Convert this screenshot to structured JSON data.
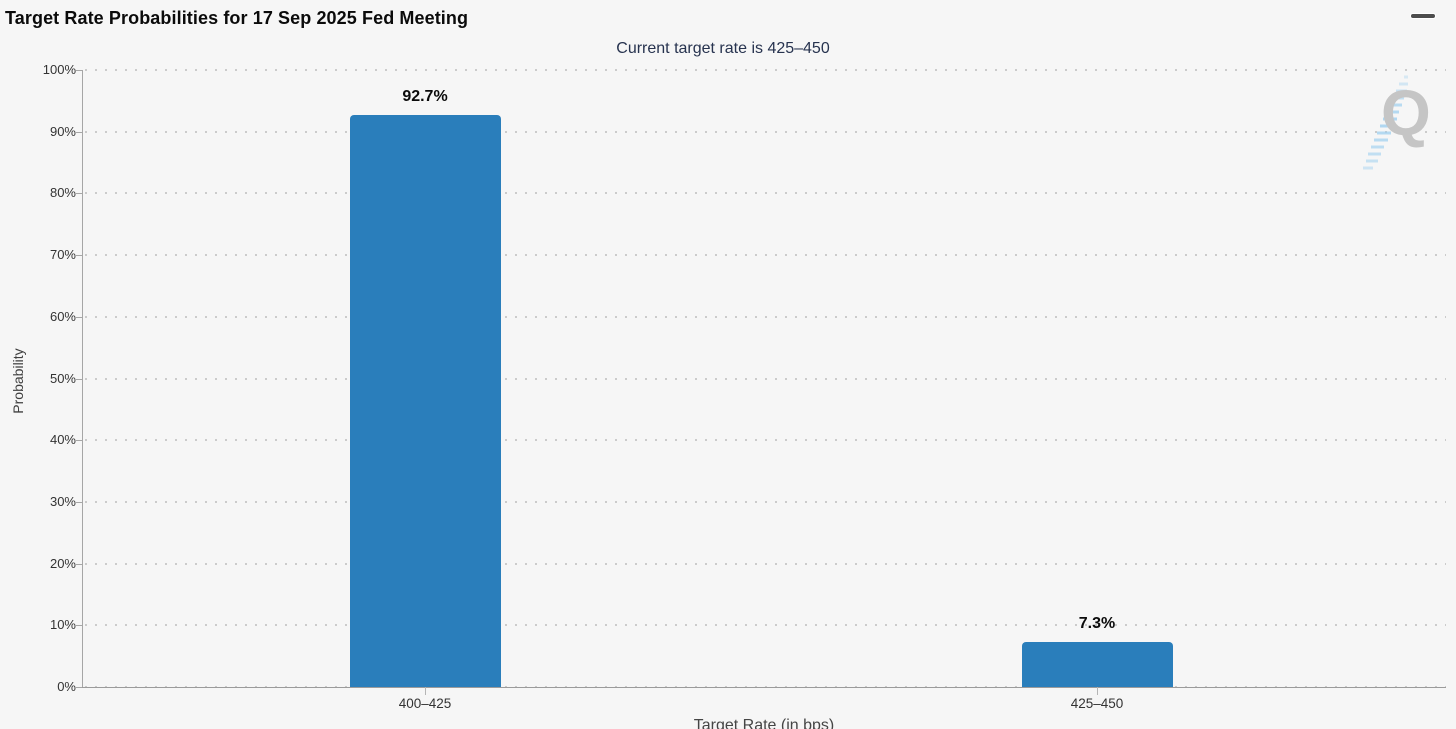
{
  "page": {
    "title": "Target Rate Probabilities for 17 Sep 2025 Fed Meeting"
  },
  "menu": {
    "icon": "hamburger-icon"
  },
  "watermark": {
    "letter": "Q"
  },
  "chart_data": {
    "type": "bar",
    "title": "Target Rate Probabilities for 17 Sep 2025 Fed Meeting",
    "subtitle": "Current target rate is 425–450",
    "categories": [
      "400–425",
      "425–450"
    ],
    "values": [
      92.7,
      7.3
    ],
    "value_labels": [
      "92.7%",
      "7.3%"
    ],
    "xlabel": "Target Rate (in bps)",
    "ylabel": "Probability",
    "ylim": [
      0,
      100
    ],
    "y_tick_labels": [
      "0%",
      "10%",
      "20%",
      "30%",
      "40%",
      "50%",
      "60%",
      "70%",
      "80%",
      "90%",
      "100%"
    ],
    "grid": "dotted horizontal",
    "legend": "none",
    "bar_color": "#2a7ebb"
  },
  "colors": {
    "background": "#f6f6f6",
    "bar": "#2a7ebb",
    "subtitle_text": "#27334f",
    "grid_dot": "#cbcbcb",
    "axis_line": "#a6a6a6",
    "tick_text": "#333333",
    "watermark_gray": "#c5c5c5",
    "watermark_blue": "#9fd0f0"
  }
}
